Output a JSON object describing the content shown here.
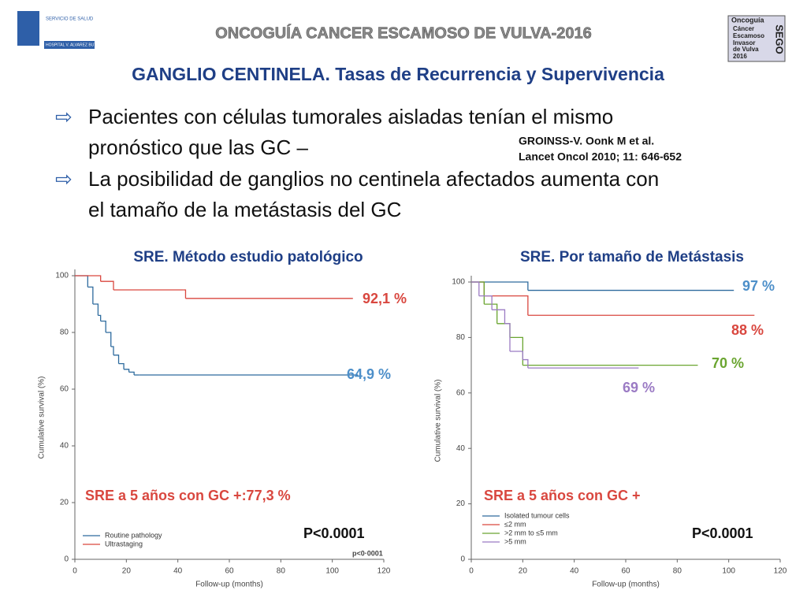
{
  "header": {
    "banner": "ONCOGUÍA CANCER ESCAMOSO DE VULVA-2016",
    "title": "GANGLIO CENTINELA. Tasas de Recurrencia y Supervivencia",
    "logo_left": [
      "SERVICIO DE SALUD",
      "HOSPITAL V. ALVAREZ BUYLLA"
    ],
    "logo_right": [
      "Oncoguía",
      "Cáncer",
      "Escamoso",
      "Invasor",
      "de Vulva",
      "2016",
      "SEGO"
    ]
  },
  "bullets": [
    [
      "Pacientes con células tumorales aisladas tenían el mismo",
      "pronóstico que las GC –"
    ],
    [
      "La posibilidad de ganglios no centinela afectados aumenta con",
      "el tamaño de la metástasis del GC"
    ]
  ],
  "reference": [
    "GROINSS-V. Oonk M et al.",
    "Lancet Oncol 2010; 11: 646-652"
  ],
  "chart_data": [
    {
      "type": "step",
      "title": "SRE. Método estudio patológico",
      "x_label": "Follow-up (months)",
      "y_label": "Cumulative survival (%)",
      "xlim": [
        0,
        120
      ],
      "xticks": [
        0,
        20,
        40,
        60,
        80,
        100,
        120
      ],
      "ylim": [
        0,
        100
      ],
      "yticks": [
        0,
        20,
        40,
        60,
        80,
        100
      ],
      "series": [
        {
          "name": "Routine pathology",
          "color": "#2e6b9e",
          "x": [
            0,
            5,
            7,
            9,
            10,
            12,
            14,
            15,
            17,
            19,
            21,
            23,
            25,
            110
          ],
          "values": [
            100,
            96,
            90,
            86,
            84,
            80,
            75,
            72,
            69,
            67,
            66,
            65,
            65,
            65
          ]
        },
        {
          "name": "Ultrastaging",
          "color": "#d9473f",
          "x": [
            0,
            10,
            15,
            42,
            43,
            108
          ],
          "values": [
            100,
            98,
            95,
            95,
            92,
            92
          ]
        }
      ],
      "annotations": [
        "92,1 %",
        "64,9 %",
        "SRE a 5 años con GC +:77,3 %",
        "P<0.0001",
        "p<0·0001"
      ]
    },
    {
      "type": "step",
      "title": "SRE. Por tamaño de Metástasis",
      "x_label": "Follow-up (months)",
      "y_label": "Cumulative survival (%)",
      "xlim": [
        0,
        120
      ],
      "xticks": [
        0,
        20,
        40,
        60,
        80,
        100,
        120
      ],
      "ylim": [
        0,
        100
      ],
      "yticks": [
        0,
        20,
        40,
        60,
        80,
        100
      ],
      "series": [
        {
          "name": "Isolated tumour cells",
          "color": "#2e6b9e",
          "x": [
            0,
            5,
            22,
            102
          ],
          "values": [
            100,
            100,
            97,
            97
          ]
        },
        {
          "name": "≤2 mm",
          "color": "#d9473f",
          "x": [
            0,
            5,
            15,
            22,
            110
          ],
          "values": [
            100,
            95,
            95,
            88,
            88
          ]
        },
        {
          "name": ">2 mm to ≤5 mm",
          "color": "#6aa530",
          "x": [
            0,
            5,
            10,
            15,
            20,
            88
          ],
          "values": [
            100,
            92,
            85,
            80,
            70,
            70
          ]
        },
        {
          "name": ">5 mm",
          "color": "#9b7bc4",
          "x": [
            0,
            3,
            8,
            13,
            15,
            20,
            22,
            65
          ],
          "values": [
            100,
            95,
            90,
            85,
            75,
            72,
            69,
            69
          ]
        }
      ],
      "annotations": [
        "97 %",
        "88 %",
        "70 %",
        "69 %",
        "SRE a 5 años con GC +",
        "P<0.0001"
      ]
    }
  ]
}
